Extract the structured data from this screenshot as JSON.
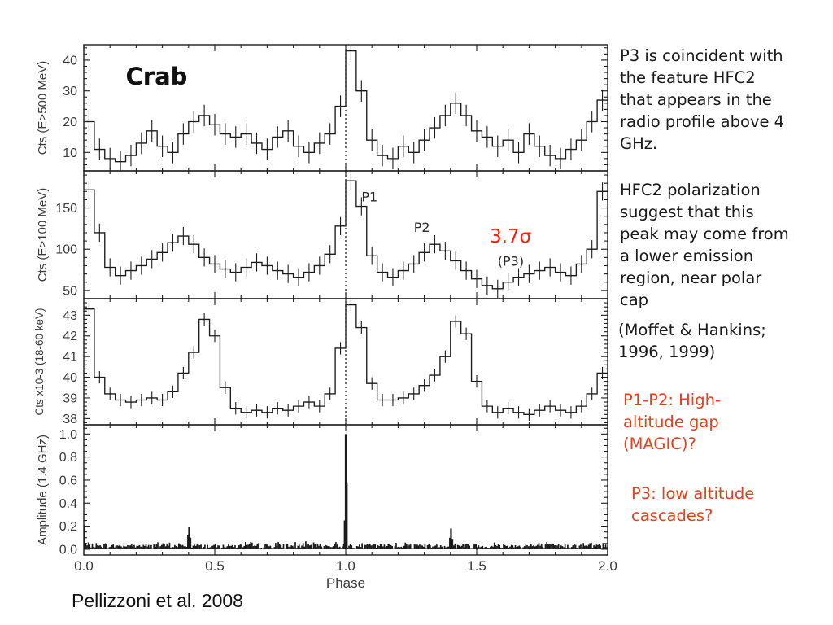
{
  "slide": {
    "attribution": "Pellizzoni et al. 2008",
    "background_color": "#ffffff",
    "accent_red": "#e2421e",
    "sigma_red": "#f2220e"
  },
  "right_column": {
    "blocks": [
      {
        "id": "p3-coincident",
        "color": "black",
        "text": "P3 is coincident with\nthe feature HFC2\nthat appears in the\nradio profile above 4\nGHz."
      },
      {
        "id": "hfc2-polarization",
        "color": "black",
        "text": "HFC2 polarization\nsuggest that this\npeak may come from\na lower emission\nregion, near polar\ncap"
      },
      {
        "id": "moffet-ref",
        "color": "black",
        "text": " (Moffet & Hankins;\n1996, 1999)"
      },
      {
        "id": "p1p2-gap",
        "color": "red",
        "text": "P1-P2: High-\naltitude gap\n(MAGIC)?"
      },
      {
        "id": "p3-cascades",
        "color": "red",
        "text": "P3: low altitude\ncascades?"
      }
    ]
  },
  "chart_data": {
    "type": "bar",
    "subtype": "multi-panel pulse-profile histograms with error bars",
    "title_annotation": "Crab",
    "x_axis": {
      "label": "Phase",
      "range": [
        0,
        2
      ],
      "major": [
        0,
        0.5,
        1,
        1.5,
        2
      ],
      "labels": [
        "0.0",
        "0.5",
        "1.0",
        "1.5",
        "2.0"
      ],
      "minor_step": 0.1
    },
    "marker_phase": 1.0,
    "bins_per_axis": 50,
    "panels": [
      {
        "ylabel": "Cts (E>500 MeV)",
        "ylim": [
          4,
          45
        ],
        "y_major": [
          10,
          20,
          30,
          40
        ],
        "y_labels": [
          "10",
          "20",
          "30",
          "40"
        ],
        "y_minor_step": 2,
        "error": 3.5,
        "values": [
          20,
          11,
          8,
          7,
          9,
          13,
          17,
          12,
          10,
          16,
          20,
          22,
          19,
          16,
          15,
          16,
          13,
          11,
          15,
          17,
          12,
          10,
          13,
          16,
          25,
          43,
          30,
          14,
          9,
          8,
          12,
          10,
          14,
          18,
          22,
          26,
          22,
          17,
          15,
          12,
          14,
          10,
          16,
          12,
          9,
          8,
          11,
          14,
          20,
          27
        ]
      },
      {
        "ylabel": "Cts (E>100 MeV)",
        "ylim": [
          40,
          195
        ],
        "y_major": [
          50,
          100,
          150
        ],
        "y_labels": [
          "50",
          "100",
          "150"
        ],
        "y_minor_step": 10,
        "error": 11,
        "values": [
          172,
          120,
          78,
          68,
          74,
          80,
          88,
          96,
          108,
          116,
          106,
          90,
          82,
          76,
          72,
          78,
          84,
          80,
          74,
          70,
          66,
          72,
          80,
          94,
          128,
          183,
          152,
          92,
          72,
          66,
          74,
          82,
          96,
          106,
          98,
          86,
          74,
          64,
          56,
          52,
          60,
          66,
          70,
          74,
          78,
          72,
          68,
          82,
          100,
          170
        ]
      },
      {
        "ylabel": "Cts x10-3 (18-60 keV)",
        "ylim": [
          37.7,
          43.8
        ],
        "y_major": [
          38,
          39,
          40,
          41,
          42,
          43
        ],
        "y_labels": [
          "38",
          "39",
          "40",
          "41",
          "42",
          "43"
        ],
        "y_minor_step": 0.2,
        "error": 0.3,
        "values": [
          43.3,
          40.0,
          39.2,
          38.9,
          38.8,
          38.9,
          39.0,
          38.9,
          39.3,
          40.2,
          41.2,
          42.8,
          42.0,
          39.5,
          38.5,
          38.3,
          38.4,
          38.3,
          38.5,
          38.4,
          38.6,
          38.8,
          38.6,
          39.2,
          41.4,
          43.5,
          42.4,
          39.7,
          38.9,
          38.9,
          39.0,
          39.2,
          39.6,
          40.1,
          41.0,
          42.7,
          42.1,
          39.8,
          38.6,
          38.3,
          38.5,
          38.3,
          38.2,
          38.4,
          38.6,
          38.4,
          38.3,
          38.6,
          39.2,
          40.2
        ]
      },
      {
        "ylabel": "Amplitude (1.4 GHz)",
        "ylim": [
          -0.05,
          1.08
        ],
        "y_major": [
          0,
          0.2,
          0.4,
          0.6,
          0.8,
          1.0
        ],
        "y_labels": [
          "0.0",
          "0.2",
          "0.4",
          "0.6",
          "0.8",
          "1.0"
        ],
        "y_minor_step": 0.05,
        "radio": true,
        "noise_baseline": 0.035,
        "spikes": [
          [
            0.002,
            0.21
          ],
          [
            0.398,
            0.12
          ],
          [
            0.402,
            0.19
          ],
          [
            0.407,
            0.1
          ],
          [
            0.996,
            0.25
          ],
          [
            1.0,
            1.0
          ],
          [
            1.004,
            0.58
          ],
          [
            1.398,
            0.1
          ],
          [
            1.402,
            0.18
          ],
          [
            1.407,
            0.09
          ]
        ]
      }
    ],
    "annotations": [
      {
        "text": "Crab",
        "panel": 0,
        "phase": 0.16,
        "value": 32,
        "size": 29,
        "weight": "bold",
        "color": "#111111"
      },
      {
        "text": "P1",
        "panel": 1,
        "phase": 1.06,
        "value": 158,
        "size": 16,
        "weight": "normal",
        "color": "#2a2a2a"
      },
      {
        "text": "P2",
        "panel": 1,
        "phase": 1.26,
        "value": 121,
        "size": 16,
        "weight": "normal",
        "color": "#2a2a2a"
      },
      {
        "text": "3.7σ",
        "panel": 1,
        "phase": 1.55,
        "value": 108,
        "size": 23,
        "weight": "normal",
        "color": "#f2220e"
      },
      {
        "text": "(P3)",
        "panel": 1,
        "phase": 1.58,
        "value": 80,
        "size": 16,
        "weight": "normal",
        "color": "#2a2a2a"
      }
    ]
  }
}
